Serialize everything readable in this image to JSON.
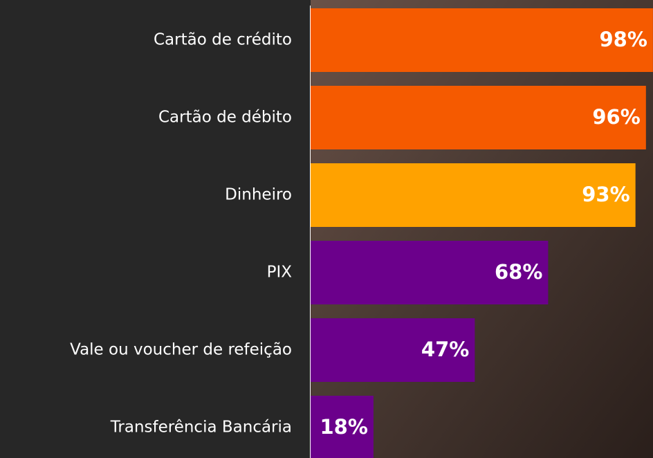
{
  "chart_data": {
    "type": "bar",
    "orientation": "horizontal",
    "categories": [
      "Cartão de crédito",
      "Cartão de débito",
      "Dinheiro",
      "PIX",
      "Vale ou voucher de refeição",
      "Transferência Bancária"
    ],
    "values": [
      98,
      96,
      93,
      68,
      47,
      18
    ],
    "value_labels": [
      "98%",
      "96%",
      "93%",
      "68%",
      "47%",
      "18%"
    ],
    "colors": [
      "#f55a00",
      "#f55a00",
      "#ffa200",
      "#6b008b",
      "#6b008b",
      "#6b008b"
    ]
  }
}
